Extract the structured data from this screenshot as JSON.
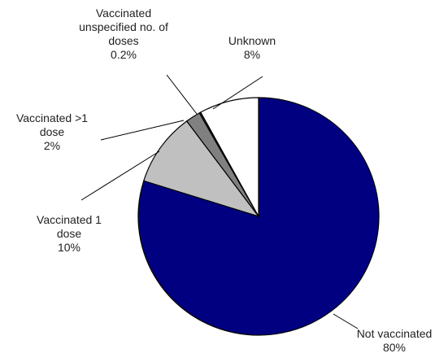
{
  "chart_data": {
    "type": "pie",
    "categories": [
      "Not vaccinated",
      "Vaccinated 1 dose",
      "Vaccinated >1 dose",
      "Vaccinated unspecified no. of doses",
      "Unknown"
    ],
    "values": [
      80,
      10,
      2,
      0.2,
      8
    ],
    "value_labels": [
      "80%",
      "10%",
      "2%",
      "0.2%",
      "8%"
    ],
    "colors": [
      "#000080",
      "#c0c0c0",
      "#808080",
      "#303030",
      "#ffffff"
    ]
  }
}
